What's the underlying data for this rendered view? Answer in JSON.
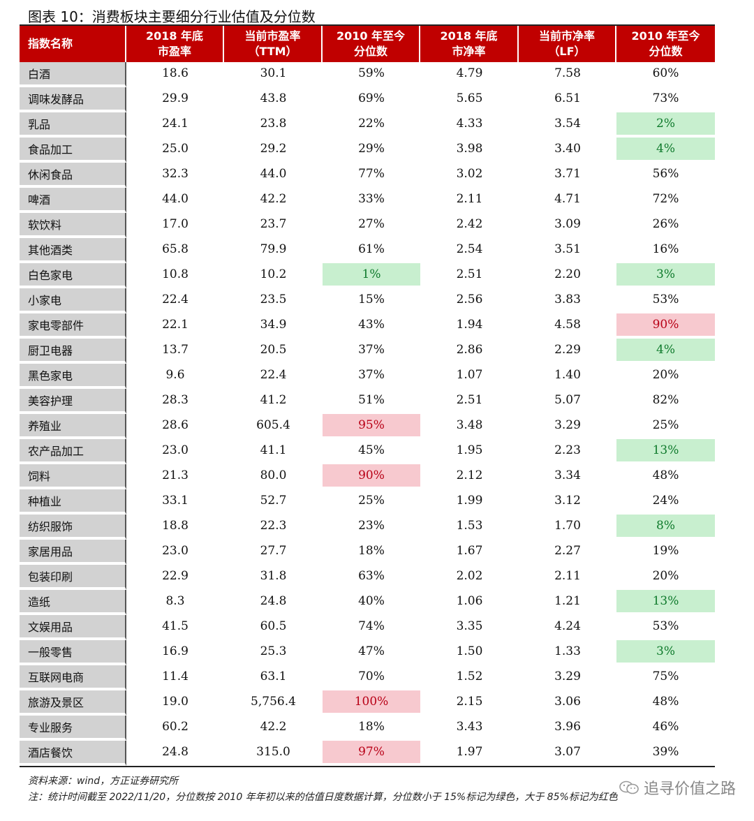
{
  "title": "图表 10：消费板块主要细分行业估值及分位数",
  "headers": [
    "指数名称",
    "2018 年底\n市盈率",
    "当前市盈率\n（TTM）",
    "2010 年至今\n分位数",
    "2018 年底\n市净率",
    "当前市净率\n（LF）",
    "2010 年至今\n分位数"
  ],
  "rows": [
    {
      "name": "白酒",
      "pe2018": "18.6",
      "pe_ttm": "30.1",
      "pe_pct": "59%",
      "pb2018": "4.79",
      "pb_lf": "7.58",
      "pb_pct": "60%"
    },
    {
      "name": "调味发酵品",
      "pe2018": "29.9",
      "pe_ttm": "43.8",
      "pe_pct": "69%",
      "pb2018": "5.65",
      "pb_lf": "6.51",
      "pb_pct": "73%"
    },
    {
      "name": "乳品",
      "pe2018": "24.1",
      "pe_ttm": "23.8",
      "pe_pct": "22%",
      "pb2018": "4.33",
      "pb_lf": "3.54",
      "pb_pct": "2%"
    },
    {
      "name": "食品加工",
      "pe2018": "25.0",
      "pe_ttm": "29.2",
      "pe_pct": "29%",
      "pb2018": "3.98",
      "pb_lf": "3.40",
      "pb_pct": "4%"
    },
    {
      "name": "休闲食品",
      "pe2018": "32.3",
      "pe_ttm": "44.0",
      "pe_pct": "77%",
      "pb2018": "3.02",
      "pb_lf": "3.71",
      "pb_pct": "56%"
    },
    {
      "name": "啤酒",
      "pe2018": "44.0",
      "pe_ttm": "42.2",
      "pe_pct": "33%",
      "pb2018": "2.11",
      "pb_lf": "4.71",
      "pb_pct": "72%"
    },
    {
      "name": "软饮料",
      "pe2018": "17.0",
      "pe_ttm": "23.7",
      "pe_pct": "27%",
      "pb2018": "2.42",
      "pb_lf": "3.09",
      "pb_pct": "26%"
    },
    {
      "name": "其他酒类",
      "pe2018": "65.8",
      "pe_ttm": "79.9",
      "pe_pct": "61%",
      "pb2018": "2.54",
      "pb_lf": "3.51",
      "pb_pct": "16%"
    },
    {
      "name": "白色家电",
      "pe2018": "10.8",
      "pe_ttm": "10.2",
      "pe_pct": "1%",
      "pb2018": "2.51",
      "pb_lf": "2.20",
      "pb_pct": "3%"
    },
    {
      "name": "小家电",
      "pe2018": "22.4",
      "pe_ttm": "23.5",
      "pe_pct": "15%",
      "pb2018": "2.56",
      "pb_lf": "3.83",
      "pb_pct": "53%"
    },
    {
      "name": "家电零部件",
      "pe2018": "22.1",
      "pe_ttm": "34.9",
      "pe_pct": "43%",
      "pb2018": "1.94",
      "pb_lf": "4.58",
      "pb_pct": "90%"
    },
    {
      "name": "厨卫电器",
      "pe2018": "13.7",
      "pe_ttm": "20.5",
      "pe_pct": "37%",
      "pb2018": "2.86",
      "pb_lf": "2.29",
      "pb_pct": "4%"
    },
    {
      "name": "黑色家电",
      "pe2018": "9.6",
      "pe_ttm": "22.4",
      "pe_pct": "37%",
      "pb2018": "1.07",
      "pb_lf": "1.40",
      "pb_pct": "20%"
    },
    {
      "name": "美容护理",
      "pe2018": "28.3",
      "pe_ttm": "41.2",
      "pe_pct": "51%",
      "pb2018": "2.51",
      "pb_lf": "5.07",
      "pb_pct": "82%"
    },
    {
      "name": "养殖业",
      "pe2018": "28.6",
      "pe_ttm": "605.4",
      "pe_pct": "95%",
      "pb2018": "3.48",
      "pb_lf": "3.29",
      "pb_pct": "25%"
    },
    {
      "name": "农产品加工",
      "pe2018": "23.0",
      "pe_ttm": "41.1",
      "pe_pct": "45%",
      "pb2018": "1.95",
      "pb_lf": "2.23",
      "pb_pct": "13%"
    },
    {
      "name": "饲料",
      "pe2018": "21.3",
      "pe_ttm": "80.0",
      "pe_pct": "90%",
      "pb2018": "2.12",
      "pb_lf": "3.34",
      "pb_pct": "48%"
    },
    {
      "name": "种植业",
      "pe2018": "33.1",
      "pe_ttm": "52.7",
      "pe_pct": "25%",
      "pb2018": "1.99",
      "pb_lf": "3.12",
      "pb_pct": "24%"
    },
    {
      "name": "纺织服饰",
      "pe2018": "18.8",
      "pe_ttm": "22.3",
      "pe_pct": "23%",
      "pb2018": "1.53",
      "pb_lf": "1.70",
      "pb_pct": "8%"
    },
    {
      "name": "家居用品",
      "pe2018": "23.0",
      "pe_ttm": "27.7",
      "pe_pct": "18%",
      "pb2018": "1.67",
      "pb_lf": "2.27",
      "pb_pct": "19%"
    },
    {
      "name": "包装印刷",
      "pe2018": "22.9",
      "pe_ttm": "31.8",
      "pe_pct": "63%",
      "pb2018": "2.02",
      "pb_lf": "2.11",
      "pb_pct": "20%"
    },
    {
      "name": "造纸",
      "pe2018": "8.3",
      "pe_ttm": "24.8",
      "pe_pct": "40%",
      "pb2018": "1.06",
      "pb_lf": "1.21",
      "pb_pct": "13%"
    },
    {
      "name": "文娱用品",
      "pe2018": "41.5",
      "pe_ttm": "60.5",
      "pe_pct": "74%",
      "pb2018": "3.35",
      "pb_lf": "4.24",
      "pb_pct": "53%"
    },
    {
      "name": "一般零售",
      "pe2018": "16.9",
      "pe_ttm": "25.3",
      "pe_pct": "47%",
      "pb2018": "1.50",
      "pb_lf": "1.33",
      "pb_pct": "3%"
    },
    {
      "name": "互联网电商",
      "pe2018": "11.4",
      "pe_ttm": "63.1",
      "pe_pct": "70%",
      "pb2018": "1.52",
      "pb_lf": "3.29",
      "pb_pct": "75%"
    },
    {
      "name": "旅游及景区",
      "pe2018": "19.0",
      "pe_ttm": "5,756.4",
      "pe_pct": "100%",
      "pb2018": "2.15",
      "pb_lf": "3.06",
      "pb_pct": "48%"
    },
    {
      "name": "专业服务",
      "pe2018": "60.2",
      "pe_ttm": "42.2",
      "pe_pct": "18%",
      "pb2018": "3.43",
      "pb_lf": "3.96",
      "pb_pct": "46%"
    },
    {
      "name": "酒店餐饮",
      "pe2018": "24.8",
      "pe_ttm": "315.0",
      "pe_pct": "97%",
      "pb2018": "1.97",
      "pb_lf": "3.07",
      "pb_pct": "39%"
    }
  ],
  "source": "资料来源：wind，方正证券研究所",
  "note": "注：统计时间截至 2022/11/20，分位数按 2010 年年初以来的估值日度数据计算，分位数小于 15%标记为绿色，大于 85%标记为红色",
  "watermark": "追寻价值之路",
  "colors": {
    "header": "#c00000",
    "name_col": "#d2d2d2",
    "green": "#c8efcf",
    "red": "#f7c9cf"
  }
}
